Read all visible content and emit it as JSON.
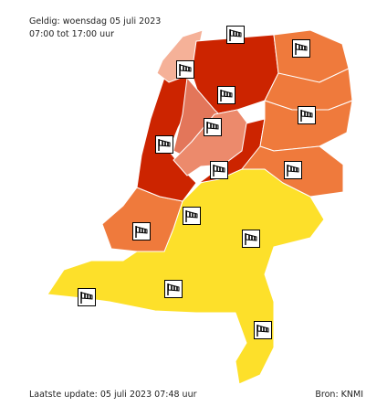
{
  "header": {
    "valid": "Geldig: woensdag 05 juli 2023",
    "time": "07:00 tot 17:00 uur"
  },
  "footer": {
    "update": "Laatste update: 05 juli 2023 07:48 uur",
    "source": "Bron: KNMI"
  }
}
